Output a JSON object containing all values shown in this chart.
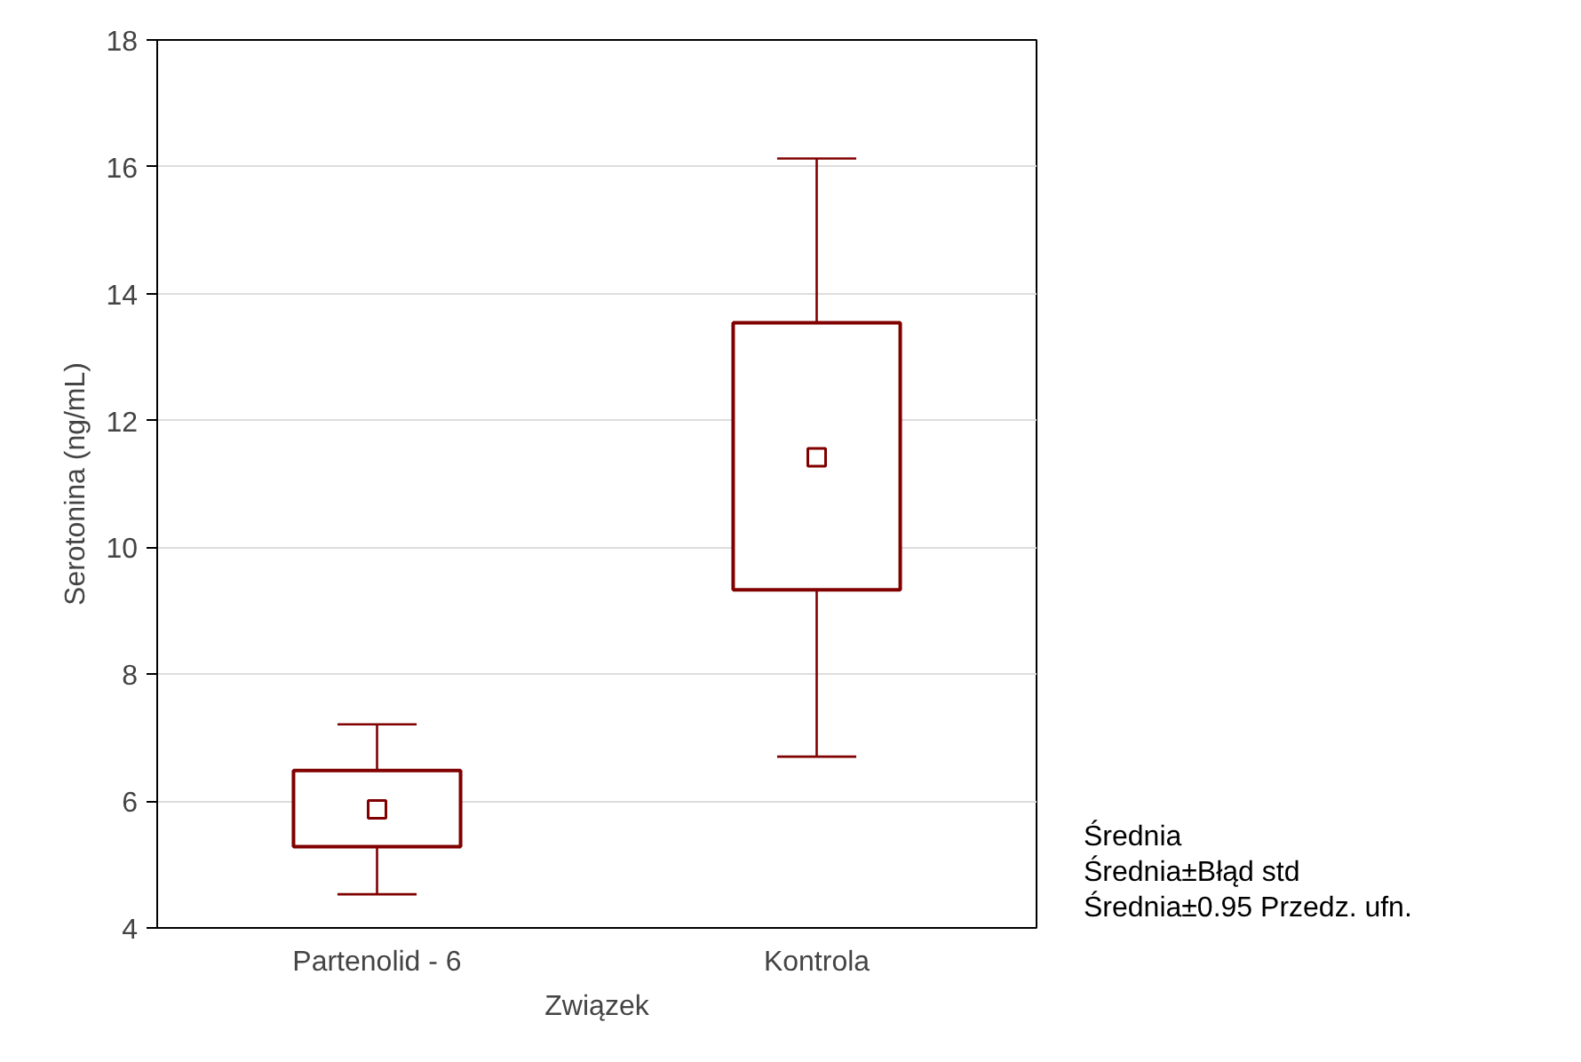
{
  "chart_data": {
    "type": "box",
    "xlabel": "Związek",
    "ylabel": "Serotonina (ng/mL)",
    "categories": [
      "Partenolid - 6",
      "Kontrola"
    ],
    "ylim": [
      4,
      18
    ],
    "yticks": [
      4,
      6,
      8,
      10,
      12,
      14,
      16,
      18
    ],
    "grid": "y",
    "marker": "square",
    "color": "#800000",
    "boxes": [
      {
        "low": 4.53,
        "q1": 5.28,
        "median": 5.87,
        "q3": 6.48,
        "high": 7.21
      },
      {
        "low": 6.7,
        "q1": 9.33,
        "median": 11.42,
        "q3": 13.54,
        "high": 16.13
      }
    ],
    "annotations": [
      "Średnia",
      "Średnia±Błąd std",
      "Średnia±0.95 Przedz. ufn."
    ]
  }
}
